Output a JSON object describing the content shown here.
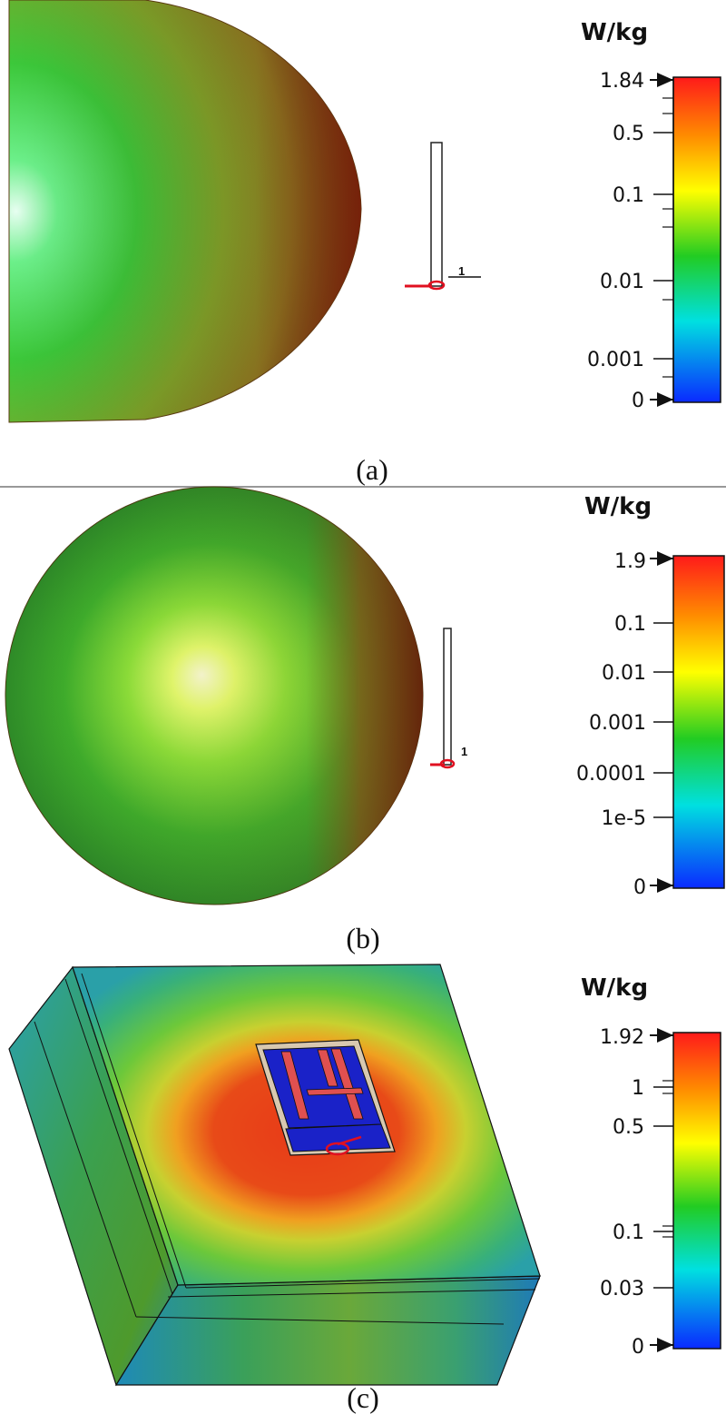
{
  "panels": [
    {
      "id": "a",
      "caption": "(a)",
      "unit": "W/kg",
      "ticks": [
        "1.84",
        "0.5",
        "0.1",
        "0.01",
        "0.001",
        "0"
      ],
      "port_label": "1"
    },
    {
      "id": "b",
      "caption": "(b)",
      "unit": "W/kg",
      "ticks": [
        "1.9",
        "0.1",
        "0.01",
        "0.001",
        "0.0001",
        "1e-5",
        "0"
      ],
      "port_label": "1"
    },
    {
      "id": "c",
      "caption": "(c)",
      "unit": "W/kg",
      "ticks": [
        "1.92",
        "1",
        "0.5",
        "0.1",
        "0.03",
        "0"
      ]
    }
  ],
  "colors": {
    "scale_top": "#ff1a1a",
    "scale_high": "#ff8c00",
    "scale_mid_high": "#ffff00",
    "scale_mid": "#22cc22",
    "scale_mid_low": "#00e0e0",
    "scale_low": "#0a2aff"
  }
}
